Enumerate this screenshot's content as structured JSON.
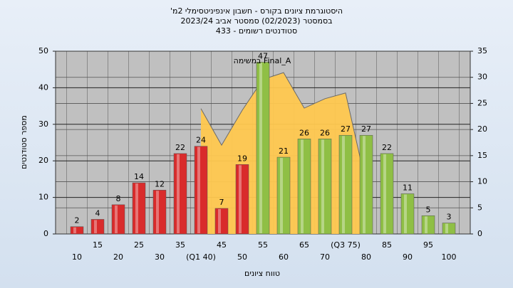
{
  "chart_data": {
    "type": "bar",
    "title_lines": [
      "היסטוגרמת ציונים בקורס - חשבון אינפיניטסימלי 2מ'",
      "בסמסטר  (02/2023)  סמסטר אביב 2023/24",
      "סטודנטים רשומים - 433"
    ],
    "annotation": "Final_A במשימה",
    "xlabel": "טווח ציונים",
    "ylabel": "מספר סטודנטים",
    "categories": [
      "10",
      "15",
      "20",
      "25",
      "30",
      "35",
      "(Q1 40)",
      "45",
      "50",
      "55",
      "60",
      "65",
      "70",
      "(Q3 75)",
      "80",
      "85",
      "90",
      "95",
      "100"
    ],
    "series": [
      {
        "type": "bar",
        "values": [
          2,
          4,
          8,
          14,
          12,
          22,
          24,
          7,
          19,
          47,
          21,
          26,
          26,
          27,
          27,
          22,
          11,
          5,
          3
        ],
        "colors": [
          "#d92b2b",
          "#d92b2b",
          "#d92b2b",
          "#d92b2b",
          "#d92b2b",
          "#d92b2b",
          "#d92b2b",
          "#d92b2b",
          "#d92b2b",
          "#8fbf45",
          "#8fbf45",
          "#8fbf45",
          "#8fbf45",
          "#8fbf45",
          "#8fbf45",
          "#8fbf45",
          "#8fbf45",
          "#8fbf45",
          "#8fbf45"
        ]
      },
      {
        "type": "area",
        "axis": "y2",
        "color": "#ffc84f",
        "values": [
          null,
          null,
          null,
          null,
          null,
          null,
          24,
          17,
          23.7,
          29.6,
          30.9,
          24.1,
          25.9,
          27,
          9.4,
          null,
          null,
          null,
          null
        ]
      }
    ],
    "ylim": [
      0,
      50
    ],
    "yticks": [
      0,
      10,
      20,
      30,
      40,
      50
    ],
    "y2lim": [
      0,
      35
    ],
    "y2ticks": [
      0,
      5,
      10,
      15,
      20,
      25,
      30,
      35
    ],
    "grid": true
  }
}
